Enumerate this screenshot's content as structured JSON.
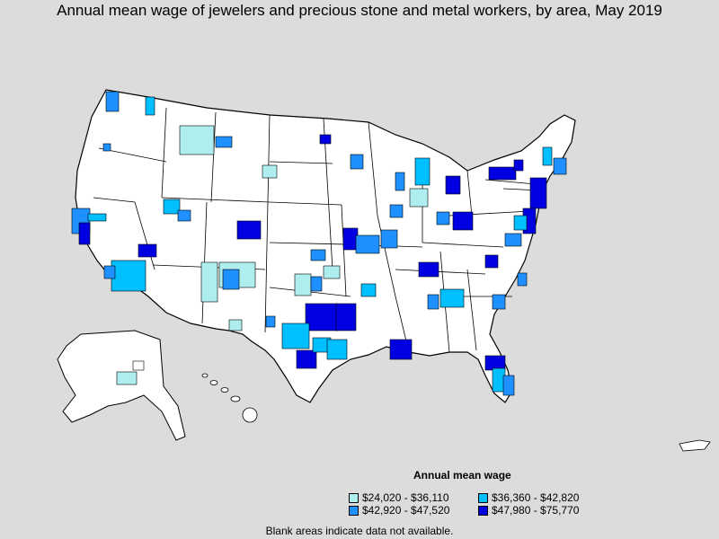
{
  "title": "Annual mean wage of jewelers and precious stone and metal workers, by area, May 2019",
  "legend": {
    "title": "Annual mean wage",
    "items": [
      {
        "label": "$24,020 - $36,110",
        "color": "#aeeeee"
      },
      {
        "label": "$36,360 - $42,820",
        "color": "#00bfff"
      },
      {
        "label": "$42,920 - $47,520",
        "color": "#1e90ff"
      },
      {
        "label": "$47,980 - $75,770",
        "color": "#0000e0"
      }
    ]
  },
  "footnote": "Blank areas indicate data not available."
}
